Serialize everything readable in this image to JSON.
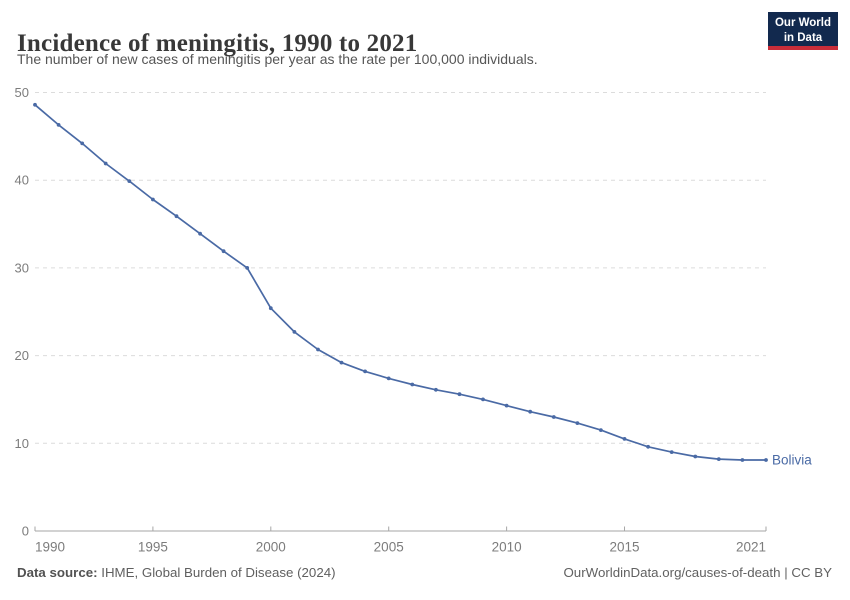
{
  "header": {
    "title": "Incidence of meningitis, 1990 to 2021",
    "subtitle": "The number of new cases of meningitis per year as the rate per 100,000 individuals."
  },
  "logo": {
    "line1": "Our World",
    "line2": "in Data",
    "bg_color": "#12294e",
    "accent_color": "#c92d39",
    "text_color": "#ffffff"
  },
  "chart_data": {
    "type": "line",
    "title": "Incidence of meningitis, 1990 to 2021",
    "xlabel": "",
    "ylabel": "",
    "xlim": [
      1990,
      2021
    ],
    "ylim": [
      0,
      50
    ],
    "x_ticks": [
      1990,
      1995,
      2000,
      2005,
      2010,
      2015,
      2021
    ],
    "y_ticks": [
      0,
      10,
      20,
      30,
      40,
      50
    ],
    "grid": "horizontal-dashed",
    "legend_position": "end-of-line-label",
    "series": [
      {
        "name": "Bolivia",
        "color": "#4a6aa5",
        "x": [
          1990,
          1991,
          1992,
          1993,
          1994,
          1995,
          1996,
          1997,
          1998,
          1999,
          2000,
          2001,
          2002,
          2003,
          2004,
          2005,
          2006,
          2007,
          2008,
          2009,
          2010,
          2011,
          2012,
          2013,
          2014,
          2015,
          2016,
          2017,
          2018,
          2019,
          2020,
          2021
        ],
        "values": [
          48.6,
          46.3,
          44.2,
          41.9,
          39.9,
          37.8,
          35.9,
          33.9,
          31.9,
          30.0,
          25.4,
          22.7,
          20.7,
          19.2,
          18.2,
          17.4,
          16.7,
          16.1,
          15.6,
          15.0,
          14.3,
          13.6,
          13.0,
          12.3,
          11.5,
          10.5,
          9.6,
          9.0,
          8.5,
          8.2,
          8.1,
          8.1
        ]
      }
    ],
    "colors": {
      "grid": "#dcdcdc",
      "axis": "#a6a6a6",
      "tick_label": "#7c7c7c"
    }
  },
  "footer": {
    "source_label": "Data source:",
    "source_text": " IHME, Global Burden of Disease (2024)",
    "right_text": "OurWorldinData.org/causes-of-death | CC BY"
  }
}
